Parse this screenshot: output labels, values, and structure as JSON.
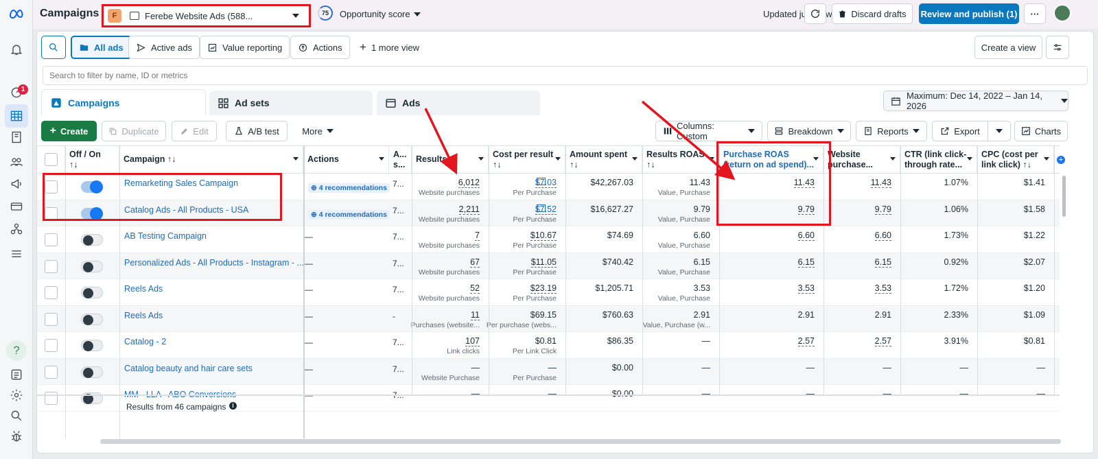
{
  "header": {
    "title": "Campaigns",
    "account_initial": "F",
    "account_name": "Ferebe Website Ads (588...",
    "score": "75",
    "opportunity_label": "Opportunity score",
    "updated": "Updated just now",
    "discard": "Discard drafts",
    "review": "Review and publish (1)",
    "more": "···"
  },
  "rail": {
    "notification_count": "1"
  },
  "views": {
    "all_ads": "All ads",
    "active_ads": "Active ads",
    "value_reporting": "Value reporting",
    "actions": "Actions",
    "more_view": "1 more view",
    "create_view": "Create a view"
  },
  "search": {
    "placeholder": "Search to filter by name, ID or metrics"
  },
  "tabs": {
    "campaigns": "Campaigns",
    "ad_sets": "Ad sets",
    "ads": "Ads"
  },
  "date_range": "Maximum: Dec 14, 2022 – Jan 14, 2026",
  "toolbar": {
    "create": "Create",
    "duplicate": "Duplicate",
    "edit": "Edit",
    "ab_test": "A/B test",
    "more": "More",
    "columns": "Columns: Custom",
    "breakdown": "Breakdown",
    "reports": "Reports",
    "export": "Export",
    "charts": "Charts"
  },
  "columns": {
    "off_on": "Off / On",
    "off_on_sort": "↑↓",
    "campaign": "Campaign ↑↓",
    "actions": "Actions",
    "attr": "A...",
    "attr2": "s...",
    "results": "Results ↑↓",
    "cost_per_result": "Cost per result",
    "cost_sort": "↑↓",
    "amount_spent": "Amount spent",
    "amount_sort": "↑↓",
    "results_roas": "Results ROAS",
    "results_roas_sort": "↑↓",
    "purchase_roas": "Purchase ROAS",
    "purchase_roas_sub": "(return on ad spend)...",
    "website": "Website",
    "website_sub": "purchase...",
    "ctr": "CTR (link click-",
    "ctr_sub": "through rate...",
    "cpc": "CPC (cost per",
    "cpc_sub": "link click) ↑↓"
  },
  "rows": [
    {
      "name": "Remarketing Sales Campaign",
      "on": true,
      "actions": "4 recommendations",
      "attr": "7...",
      "results": "6,012",
      "results_sub": "Website purchases",
      "cost": "$7.03",
      "cost_sub": "Per Purchase",
      "cost_icon": true,
      "spent": "$42,267.03",
      "rroas": "11.43",
      "rroas_sub": "Value, Purchase",
      "proas": "11.43",
      "web": "11.43",
      "ctr": "1.07%",
      "cpc": "$1.41"
    },
    {
      "name": "Catalog Ads - All Products - USA",
      "on": true,
      "actions": "4 recommendations",
      "attr": "7...",
      "results": "2,211",
      "results_sub": "Website purchases",
      "cost": "$7.52",
      "cost_sub": "Per Purchase",
      "cost_icon": true,
      "spent": "$16,627.27",
      "rroas": "9.79",
      "rroas_sub": "Value, Purchase",
      "proas": "9.79",
      "web": "9.79",
      "ctr": "1.06%",
      "cpc": "$1.58"
    },
    {
      "name": "AB Testing Campaign",
      "on": false,
      "actions": "—",
      "attr": "7...",
      "results": "7",
      "results_sub": "Website purchases",
      "cost": "$10.67",
      "cost_sub": "Per Purchase",
      "spent": "$74.69",
      "rroas": "6.60",
      "rroas_sub": "Value, Purchase",
      "proas": "6.60",
      "web": "6.60",
      "ctr": "1.73%",
      "cpc": "$1.22"
    },
    {
      "name": "Personalized Ads - All Products - Instagram - ...",
      "on": false,
      "actions": "—",
      "attr": "7...",
      "results": "67",
      "results_sub": "Website purchases",
      "cost": "$11.05",
      "cost_sub": "Per Purchase",
      "spent": "$740.42",
      "rroas": "6.15",
      "rroas_sub": "Value, Purchase",
      "proas": "6.15",
      "web": "6.15",
      "ctr": "0.92%",
      "cpc": "$2.07"
    },
    {
      "name": "Reels Ads",
      "on": false,
      "actions": "—",
      "attr": "7...",
      "results": "52",
      "results_sub": "Website purchases",
      "cost": "$23.19",
      "cost_sub": "Per Purchase",
      "spent": "$1,205.71",
      "rroas": "3.53",
      "rroas_sub": "Value, Purchase",
      "proas": "3.53",
      "web": "3.53",
      "ctr": "1.72%",
      "cpc": "$1.20"
    },
    {
      "name": "Reels Ads",
      "on": false,
      "actions": "—",
      "attr": "-",
      "results": "11",
      "results_sub": "Purchases (website...",
      "cost": "$69.15",
      "cost_sub": "Per purchase (webs...",
      "spent": "$760.63",
      "rroas": "2.91",
      "rroas_sub": "Value, Purchase (w...",
      "proas": "2.91",
      "web": "2.91",
      "ctr": "2.33%",
      "cpc": "$1.09"
    },
    {
      "name": "Catalog - 2",
      "on": false,
      "actions": "—",
      "attr": "7...",
      "results": "107",
      "results_sub": "Link clicks",
      "cost": "$0.81",
      "cost_sub": "Per Link Click",
      "spent": "$86.35",
      "rroas": "—",
      "rroas_sub": "",
      "proas": "2.57",
      "web": "2.57",
      "ctr": "3.91%",
      "cpc": "$0.81"
    },
    {
      "name": "Catalog beauty and hair care sets",
      "on": false,
      "actions": "—",
      "attr": "7...",
      "results": "—",
      "results_sub": "Website Purchase",
      "cost": "—",
      "cost_sub": "Per Purchase",
      "spent": "$0.00",
      "rroas": "—",
      "rroas_sub": "",
      "proas": "—",
      "web": "—",
      "ctr": "—",
      "cpc": "—"
    },
    {
      "name": "MM - LLA - ABO Conversions",
      "on": false,
      "actions": "—",
      "attr": "7...",
      "results": "—",
      "results_sub": "",
      "cost": "—",
      "cost_sub": "",
      "spent": "$0.00",
      "rroas": "—",
      "rroas_sub": "",
      "proas": "—",
      "web": "—",
      "ctr": "—",
      "cpc": "—"
    }
  ],
  "footer": {
    "results_summary": "Results from 46 campaigns"
  },
  "colors": {
    "accent": "#0a78be",
    "create_green": "#1a7b45",
    "highlight_red": "#e3161f"
  }
}
